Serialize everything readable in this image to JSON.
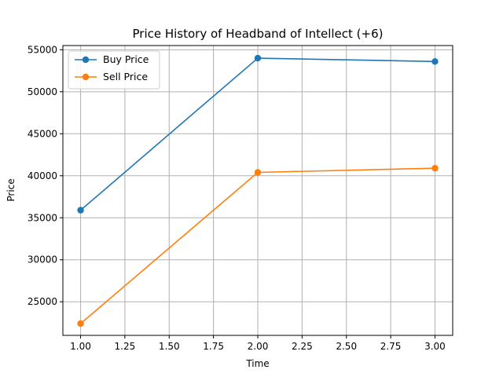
{
  "chart_data": {
    "type": "line",
    "title": "Price History of Headband of Intellect (+6)",
    "xlabel": "Time",
    "ylabel": "Price",
    "xlim": [
      0.9,
      3.1
    ],
    "ylim": [
      21000,
      55500
    ],
    "xticks": [
      1.0,
      1.25,
      1.5,
      1.75,
      2.0,
      2.25,
      2.5,
      2.75,
      3.0
    ],
    "xtick_labels": [
      "1.00",
      "1.25",
      "1.50",
      "1.75",
      "2.00",
      "2.25",
      "2.50",
      "2.75",
      "3.00"
    ],
    "yticks": [
      25000,
      30000,
      35000,
      40000,
      45000,
      50000,
      55000
    ],
    "ytick_labels": [
      "25000",
      "30000",
      "35000",
      "40000",
      "45000",
      "50000",
      "55000"
    ],
    "grid": true,
    "legend_position": "top-left",
    "x": [
      1,
      2,
      3
    ],
    "series": [
      {
        "name": "Buy Price",
        "color": "#1f77b4",
        "marker": "circle",
        "values": [
          35900,
          54000,
          53600
        ]
      },
      {
        "name": "Sell Price",
        "color": "#ff7f0e",
        "marker": "circle",
        "values": [
          22400,
          40400,
          40900
        ]
      }
    ]
  }
}
